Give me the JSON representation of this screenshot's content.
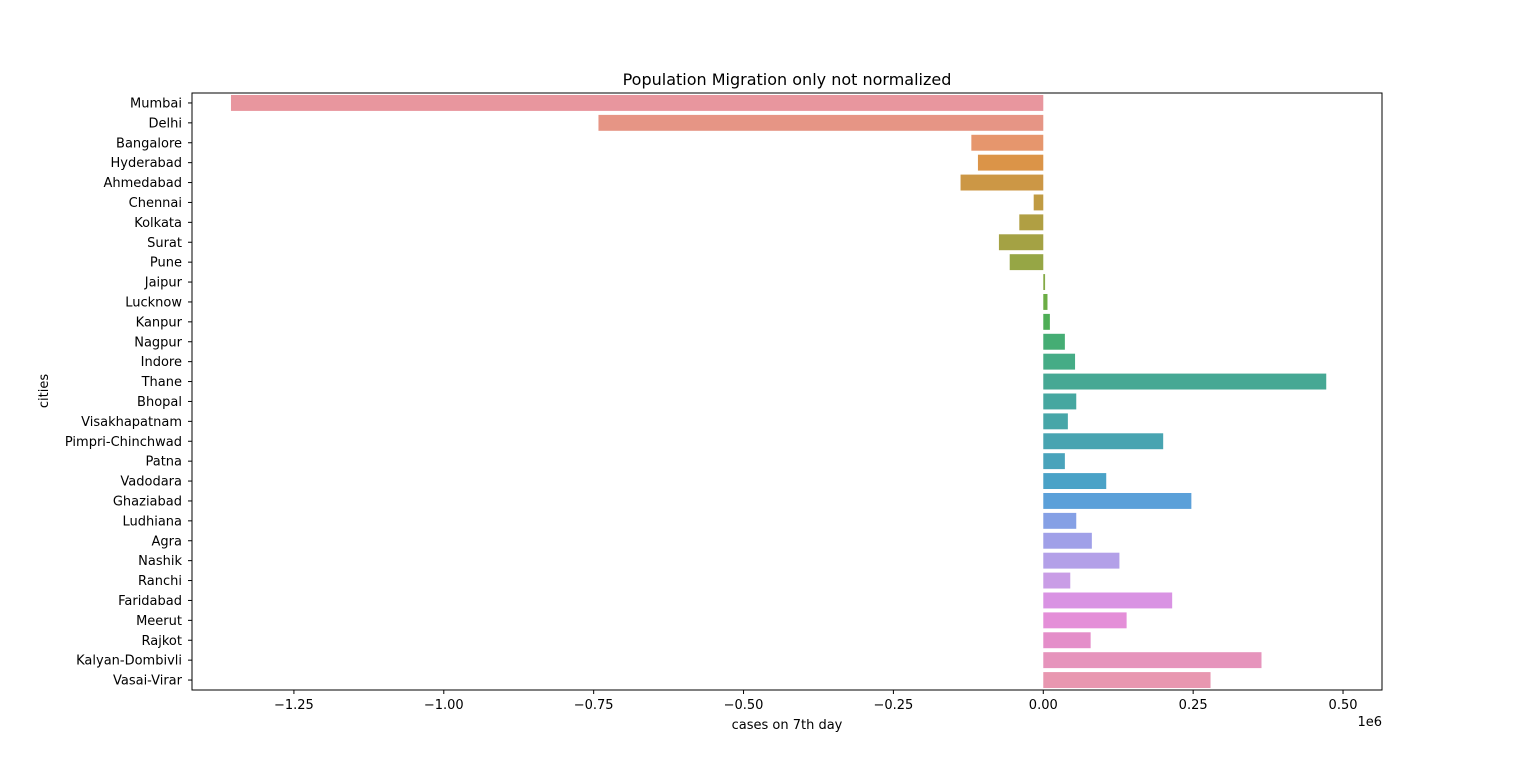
{
  "chart_data": {
    "type": "bar",
    "orientation": "horizontal",
    "title": "Population Migration only not normalized",
    "xlabel": "cases on 7th day",
    "ylabel": "cities",
    "x_offset_label": "1e6",
    "xlim": [
      -1.42,
      0.565
    ],
    "x_ticks": [
      -1.25,
      -1.0,
      -0.75,
      -0.5,
      -0.25,
      0.0,
      0.25,
      0.5
    ],
    "x_tick_labels": [
      "−1.25",
      "−1.00",
      "−0.75",
      "−0.50",
      "−0.25",
      "0.00",
      "0.25",
      "0.50"
    ],
    "grid": false,
    "legend": "none",
    "categories": [
      "Mumbai",
      "Delhi",
      "Bangalore",
      "Hyderabad",
      "Ahmedabad",
      "Chennai",
      "Kolkata",
      "Surat",
      "Pune",
      "Jaipur",
      "Lucknow",
      "Kanpur",
      "Nagpur",
      "Indore",
      "Thane",
      "Bhopal",
      "Visakhapatnam",
      "Pimpri-Chinchwad",
      "Patna",
      "Vadodara",
      "Ghaziabad",
      "Ludhiana",
      "Agra",
      "Nashik",
      "Ranchi",
      "Faridabad",
      "Meerut",
      "Rajkot",
      "Kalyan-Dombivli",
      "Vasai-Virar"
    ],
    "values": [
      -1.355,
      -0.742,
      -0.12,
      -0.109,
      -0.138,
      -0.016,
      -0.04,
      -0.074,
      -0.056,
      0.003,
      0.007,
      0.011,
      0.036,
      0.053,
      0.472,
      0.055,
      0.041,
      0.2,
      0.036,
      0.105,
      0.247,
      0.055,
      0.081,
      0.127,
      0.045,
      0.215,
      0.139,
      0.079,
      0.364,
      0.279
    ],
    "colors": [
      "#e8969e",
      "#e69585",
      "#e6966d",
      "#db9448",
      "#cc9745",
      "#c09b43",
      "#b09f43",
      "#a4a244",
      "#96a645",
      "#84a946",
      "#6bad45",
      "#4eae56",
      "#45ad74",
      "#45ac86",
      "#46a894",
      "#46a7a0",
      "#47a6a8",
      "#48a4b1",
      "#49a3bb",
      "#4aa2c7",
      "#5ba0d9",
      "#85a0e5",
      "#a0a0e8",
      "#b3a0e8",
      "#c99de6",
      "#d993e3",
      "#e48fd8",
      "#e48ec9",
      "#e694bc",
      "#e897b0"
    ]
  }
}
